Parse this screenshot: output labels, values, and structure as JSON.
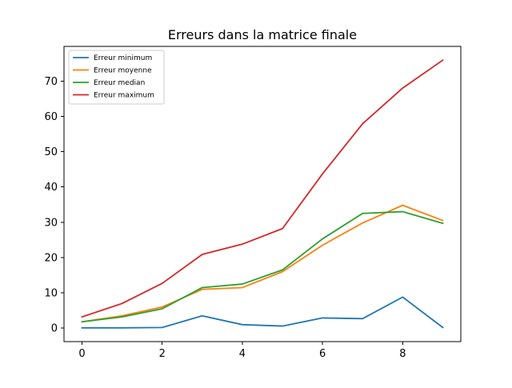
{
  "chart_data": {
    "type": "line",
    "title": "Erreurs dans la matrice finale",
    "xlabel": "",
    "ylabel": "",
    "x": [
      0,
      1,
      2,
      3,
      4,
      5,
      6,
      7,
      8,
      9
    ],
    "xlim": [
      -0.45,
      9.45
    ],
    "ylim": [
      -3.8,
      79.8
    ],
    "xticks": [
      0,
      2,
      4,
      6,
      8
    ],
    "yticks": [
      0,
      10,
      20,
      30,
      40,
      50,
      60,
      70
    ],
    "grid": false,
    "legend_position": "top-left",
    "series": [
      {
        "name": "Erreur minimum",
        "color": "#1f77b4",
        "values": [
          0.1,
          0.1,
          0.2,
          3.5,
          1.0,
          0.6,
          2.9,
          2.7,
          8.8,
          0.2
        ]
      },
      {
        "name": "Erreur moyenne",
        "color": "#ff7f0e",
        "values": [
          1.8,
          3.5,
          6.0,
          11.0,
          11.5,
          16.0,
          23.5,
          29.8,
          34.8,
          30.5
        ]
      },
      {
        "name": "Erreur median",
        "color": "#2ca02c",
        "values": [
          1.8,
          3.2,
          5.5,
          11.5,
          12.5,
          16.5,
          25.3,
          32.5,
          33.0,
          29.7
        ]
      },
      {
        "name": "Erreur maximum",
        "color": "#d62728",
        "values": [
          3.2,
          7.0,
          12.7,
          20.9,
          23.8,
          28.2,
          43.7,
          57.9,
          68.0,
          75.9
        ]
      }
    ]
  }
}
